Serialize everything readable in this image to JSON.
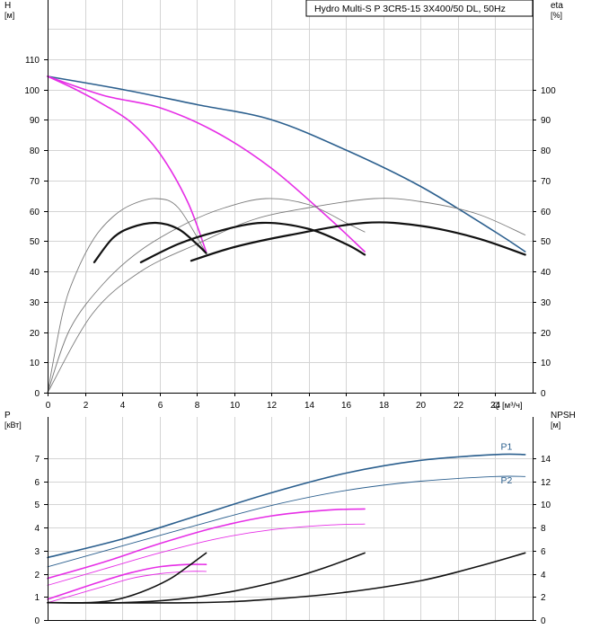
{
  "title": "Hydro Multi-S P 3CR5-15 3X400/50 DL, 50Hz",
  "colors": {
    "blue": "#2b5f8e",
    "magenta": "#e62ee6",
    "black": "#111111",
    "gray": "#7a7a7a",
    "grid": "#d4d4d4"
  },
  "chart_data": [
    {
      "type": "line",
      "name": "head-eta-chart",
      "xlabel": "Q [м³/ч]",
      "xlim": [
        0,
        26
      ],
      "xticks": [
        0,
        2,
        4,
        6,
        8,
        10,
        12,
        14,
        16,
        18,
        20,
        22,
        24
      ],
      "ylabel_left": "H\n[м]",
      "ylabel_left_lines": [
        "H",
        "[м]"
      ],
      "ylim_left": [
        0,
        120
      ],
      "yticks_left": [
        0,
        10,
        20,
        30,
        40,
        50,
        60,
        70,
        80,
        90,
        100,
        110
      ],
      "ylabel_right_lines": [
        "eta",
        "[%]"
      ],
      "ylim_right": [
        0,
        120
      ],
      "yticks_right": [
        0,
        10,
        20,
        30,
        40,
        50,
        60,
        70,
        80,
        90,
        100
      ],
      "series": [
        {
          "name": "H-3-pumps",
          "color": "blue",
          "width": 1.6,
          "x": [
            0,
            4,
            8,
            12,
            16,
            20,
            24,
            25.6
          ],
          "y": [
            104.3,
            100,
            95,
            90,
            80,
            68,
            53,
            46.5
          ]
        },
        {
          "name": "H-2-pumps",
          "color": "magenta",
          "width": 1.6,
          "x": [
            0,
            3,
            6,
            9,
            12,
            15,
            17
          ],
          "y": [
            104.3,
            98,
            94,
            86,
            74,
            58,
            46.5
          ]
        },
        {
          "name": "H-1-pump",
          "color": "magenta",
          "width": 1.6,
          "x": [
            0,
            1.5,
            3,
            4.5,
            6,
            7.5,
            8.5
          ],
          "y": [
            104.3,
            100,
            95,
            89,
            79,
            63,
            46.5
          ]
        },
        {
          "name": "eta-3-pumps",
          "color": "gray",
          "width": 0.9,
          "x": [
            0,
            2.4,
            5,
            8,
            11,
            14,
            17.5,
            20,
            23,
            25.6
          ],
          "y": [
            0,
            26,
            40,
            49,
            57,
            61,
            64,
            63,
            59,
            52
          ]
        },
        {
          "name": "eta-2-pumps",
          "color": "gray",
          "width": 0.9,
          "x": [
            0,
            1.2,
            3,
            5,
            7.5,
            9.5,
            11.7,
            14,
            16,
            17
          ],
          "y": [
            0,
            21,
            36,
            47,
            56,
            61,
            64,
            62,
            56,
            53
          ]
        },
        {
          "name": "eta-1-pump",
          "color": "gray",
          "width": 0.9,
          "x": [
            0,
            0.8,
            1.5,
            2.5,
            3.5,
            4.5,
            5.8,
            7,
            8.5
          ],
          "y": [
            0,
            26,
            39,
            51,
            58,
            62,
            64,
            61,
            46
          ]
        },
        {
          "name": "eta-op-3-pumps",
          "color": "black",
          "width": 2.2,
          "x": [
            7.7,
            10,
            13,
            17,
            20,
            23,
            25.6
          ],
          "y": [
            43.5,
            48,
            52,
            56,
            55,
            51,
            45.5
          ]
        },
        {
          "name": "eta-op-2-pumps",
          "color": "black",
          "width": 2.2,
          "x": [
            5,
            7,
            9,
            11.5,
            14,
            16,
            17
          ],
          "y": [
            43,
            49,
            53,
            56,
            54,
            49,
            45.5
          ]
        },
        {
          "name": "eta-op-1-pump",
          "color": "black",
          "width": 2.2,
          "x": [
            2.5,
            3.5,
            4.5,
            5.8,
            7,
            8,
            8.5
          ],
          "y": [
            43,
            51,
            54.5,
            56,
            54,
            49,
            46
          ]
        }
      ]
    },
    {
      "type": "line",
      "name": "power-npsh-chart",
      "xlim": [
        0,
        26
      ],
      "ylabel_left_lines": [
        "P",
        "[кВт]"
      ],
      "ylim_left": [
        0,
        8
      ],
      "yticks_left": [
        0,
        1,
        2,
        3,
        4,
        5,
        6,
        7
      ],
      "ylabel_right_lines": [
        "NPSH",
        "[м]"
      ],
      "ylim_right": [
        0,
        16
      ],
      "yticks_right": [
        0,
        2,
        4,
        6,
        8,
        10,
        12,
        14
      ],
      "series_labels": [
        {
          "name": "P1-label",
          "text": "P1",
          "x": 24.6,
          "y": 7.35
        },
        {
          "name": "P2-label",
          "text": "P2",
          "x": 24.6,
          "y": 5.9
        }
      ],
      "series": [
        {
          "name": "P1-3-pumps",
          "color": "blue",
          "width": 1.6,
          "x": [
            0,
            4,
            8,
            12,
            16,
            20,
            24,
            25.6
          ],
          "y": [
            2.7,
            3.5,
            4.5,
            5.5,
            6.35,
            6.9,
            7.15,
            7.15
          ]
        },
        {
          "name": "P2-3-pumps",
          "color": "blue",
          "width": 0.9,
          "x": [
            0,
            4,
            8,
            12,
            16,
            20,
            24,
            25.6
          ],
          "y": [
            2.3,
            3.2,
            4.1,
            4.95,
            5.6,
            6.0,
            6.2,
            6.2
          ]
        },
        {
          "name": "P1-2-pumps",
          "color": "magenta",
          "width": 1.6,
          "x": [
            0,
            3,
            6,
            9,
            12,
            15,
            17
          ],
          "y": [
            1.8,
            2.5,
            3.3,
            4.0,
            4.5,
            4.75,
            4.8
          ]
        },
        {
          "name": "P2-2-pumps",
          "color": "magenta",
          "width": 0.9,
          "x": [
            0,
            3,
            6,
            9,
            12,
            15,
            17
          ],
          "y": [
            1.5,
            2.2,
            2.9,
            3.5,
            3.9,
            4.1,
            4.15
          ]
        },
        {
          "name": "P1-1-pump",
          "color": "magenta",
          "width": 1.6,
          "x": [
            0,
            1.5,
            3,
            4.5,
            6,
            7.5,
            8.5
          ],
          "y": [
            0.9,
            1.3,
            1.7,
            2.05,
            2.3,
            2.4,
            2.4
          ]
        },
        {
          "name": "P2-1-pump",
          "color": "magenta",
          "width": 0.9,
          "x": [
            0,
            1.5,
            3,
            4.5,
            6,
            7.5,
            8.5
          ],
          "y": [
            0.75,
            1.1,
            1.45,
            1.8,
            2.0,
            2.1,
            2.1
          ]
        },
        {
          "name": "NPSH-3-pumps",
          "color": "black",
          "width": 1.6,
          "axis": "right",
          "x": [
            0,
            8,
            12,
            16,
            20,
            23,
            25.6
          ],
          "y": [
            1.5,
            1.5,
            1.8,
            2.4,
            3.4,
            4.6,
            5.8
          ]
        },
        {
          "name": "NPSH-2-pumps",
          "color": "black",
          "width": 1.6,
          "axis": "right",
          "x": [
            0,
            4,
            7,
            10,
            13,
            15,
            17
          ],
          "y": [
            1.5,
            1.5,
            1.8,
            2.5,
            3.6,
            4.6,
            5.8
          ]
        },
        {
          "name": "NPSH-1-pump",
          "color": "black",
          "width": 1.6,
          "axis": "right",
          "x": [
            0,
            2,
            3.5,
            5,
            6.5,
            7.5,
            8.5
          ],
          "y": [
            1.5,
            1.5,
            1.7,
            2.4,
            3.5,
            4.6,
            5.8
          ]
        }
      ]
    }
  ]
}
